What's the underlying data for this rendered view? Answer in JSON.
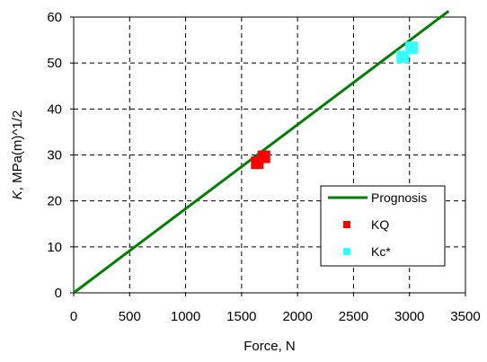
{
  "chart_data": {
    "type": "line",
    "xlabel": "Force, N",
    "ylabel_italic": "K",
    "ylabel_rest": ", MPa(m)^1/2",
    "xlim": [
      0,
      3500
    ],
    "ylim": [
      0,
      60
    ],
    "x_ticks": [
      "0",
      "500",
      "1000",
      "1500",
      "2000",
      "2500",
      "3000",
      "3500"
    ],
    "y_ticks": [
      "0",
      "10",
      "20",
      "30",
      "40",
      "50",
      "60"
    ],
    "grid": "dashed",
    "legend_position": "lower-right",
    "series": [
      {
        "name": "Prognosis",
        "kind": "line",
        "color": "#008000",
        "points": [
          [
            0,
            0
          ],
          [
            3350,
            61.3
          ]
        ]
      },
      {
        "name": "KQ",
        "kind": "marker",
        "color": "#ff0000",
        "points": [
          [
            1640,
            28.3
          ],
          [
            1700,
            29.6
          ]
        ]
      },
      {
        "name": "Kc*",
        "kind": "marker",
        "color": "#33ffff",
        "points": [
          [
            2940,
            51.3
          ],
          [
            3020,
            53.3
          ]
        ]
      }
    ]
  }
}
